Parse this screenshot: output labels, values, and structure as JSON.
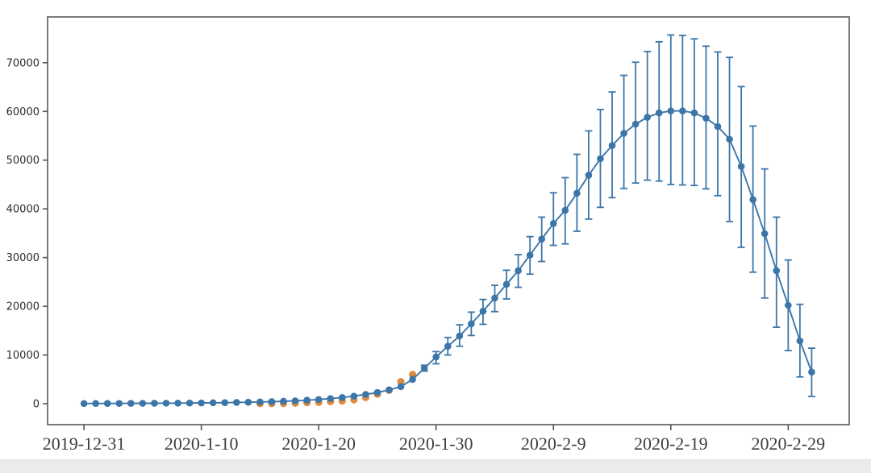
{
  "page": {
    "background_color": "#ffffff",
    "bottom_strip_color": "#ebebeb"
  },
  "chart_data": {
    "type": "line",
    "title": "",
    "xlabel": "",
    "ylabel": "",
    "grid": false,
    "legend": "none",
    "frame_color": "#7a7a7a",
    "x_tick_labels": [
      "2019-12-31",
      "2020-1-10",
      "2020-1-20",
      "2020-1-30",
      "2020-2-9",
      "2020-2-19",
      "2020-2-29"
    ],
    "y_tick_values": [
      0,
      10000,
      20000,
      30000,
      40000,
      50000,
      60000,
      70000
    ],
    "y_tick_labels": [
      "0",
      "10000",
      "20000",
      "30000",
      "40000",
      "50000",
      "60000",
      "70000"
    ],
    "xlim_day_index": [
      -3.1,
      65.2
    ],
    "ylim": [
      -4300,
      79400
    ],
    "series": [
      {
        "name": "blue-line-with-error-bars",
        "type": "line+markers+errorbars",
        "color": "#3c76a8",
        "dates": [
          "2019-12-31",
          "2020-1-1",
          "2020-1-2",
          "2020-1-3",
          "2020-1-4",
          "2020-1-5",
          "2020-1-6",
          "2020-1-7",
          "2020-1-8",
          "2020-1-9",
          "2020-1-10",
          "2020-1-11",
          "2020-1-12",
          "2020-1-13",
          "2020-1-14",
          "2020-1-15",
          "2020-1-16",
          "2020-1-17",
          "2020-1-18",
          "2020-1-19",
          "2020-1-20",
          "2020-1-21",
          "2020-1-22",
          "2020-1-23",
          "2020-1-24",
          "2020-1-25",
          "2020-1-26",
          "2020-1-27",
          "2020-1-28",
          "2020-1-29",
          "2020-1-30",
          "2020-1-31",
          "2020-2-1",
          "2020-2-2",
          "2020-2-3",
          "2020-2-4",
          "2020-2-5",
          "2020-2-6",
          "2020-2-7",
          "2020-2-8",
          "2020-2-9",
          "2020-2-10",
          "2020-2-11",
          "2020-2-12",
          "2020-2-13",
          "2020-2-14",
          "2020-2-15",
          "2020-2-16",
          "2020-2-17",
          "2020-2-18",
          "2020-2-19",
          "2020-2-20",
          "2020-2-21",
          "2020-2-22",
          "2020-2-23",
          "2020-2-24",
          "2020-2-25",
          "2020-2-26",
          "2020-2-27",
          "2020-2-28",
          "2020-2-29",
          "2020-3-1",
          "2020-3-2"
        ],
        "values": [
          40,
          45,
          50,
          60,
          70,
          80,
          90,
          105,
          120,
          140,
          160,
          190,
          220,
          260,
          300,
          360,
          420,
          500,
          600,
          720,
          870,
          1050,
          1270,
          1550,
          1900,
          2300,
          2850,
          3500,
          5000,
          7300,
          9600,
          11800,
          13900,
          16400,
          19000,
          21700,
          24500,
          27300,
          30500,
          33800,
          37000,
          39700,
          43200,
          46900,
          50300,
          53000,
          55500,
          57400,
          58800,
          59700,
          60100,
          60100,
          59700,
          58600,
          56900,
          54300,
          48700,
          41900,
          34900,
          27300,
          20200,
          12900,
          6500
        ],
        "err_up": [
          0,
          0,
          0,
          0,
          0,
          0,
          0,
          0,
          0,
          0,
          0,
          0,
          0,
          0,
          0,
          0,
          0,
          0,
          0,
          0,
          0,
          0,
          0,
          0,
          0,
          0,
          0,
          0,
          0,
          600,
          1100,
          1800,
          2300,
          2400,
          2400,
          2600,
          2900,
          3300,
          3800,
          4500,
          6300,
          6700,
          8000,
          9100,
          10100,
          11000,
          11900,
          12700,
          13500,
          14600,
          15600,
          15500,
          15200,
          14800,
          15300,
          16800,
          16400,
          15100,
          13300,
          11000,
          9300,
          7500,
          4900
        ],
        "err_down": [
          0,
          0,
          0,
          0,
          0,
          0,
          0,
          0,
          0,
          0,
          0,
          0,
          0,
          0,
          0,
          0,
          0,
          0,
          0,
          0,
          0,
          0,
          0,
          0,
          0,
          0,
          0,
          0,
          0,
          600,
          1400,
          1800,
          2100,
          2400,
          2700,
          2800,
          3000,
          3400,
          3900,
          4600,
          4500,
          6900,
          7800,
          9000,
          10000,
          10700,
          11300,
          12100,
          12900,
          14000,
          15100,
          15200,
          14900,
          14500,
          14200,
          16900,
          16600,
          14900,
          13200,
          11600,
          9300,
          7400,
          5000
        ]
      },
      {
        "name": "orange-dots",
        "type": "markers",
        "color": "#df8b3e",
        "dates": [
          "2020-1-15",
          "2020-1-16",
          "2020-1-17",
          "2020-1-18",
          "2020-1-19",
          "2020-1-20",
          "2020-1-21",
          "2020-1-22",
          "2020-1-23",
          "2020-1-24",
          "2020-1-25",
          "2020-1-26",
          "2020-1-27",
          "2020-1-28"
        ],
        "values": [
          41,
          45,
          62,
          121,
          224,
          291,
          440,
          571,
          830,
          1287,
          1975,
          2744,
          4515,
          5974
        ]
      }
    ]
  }
}
